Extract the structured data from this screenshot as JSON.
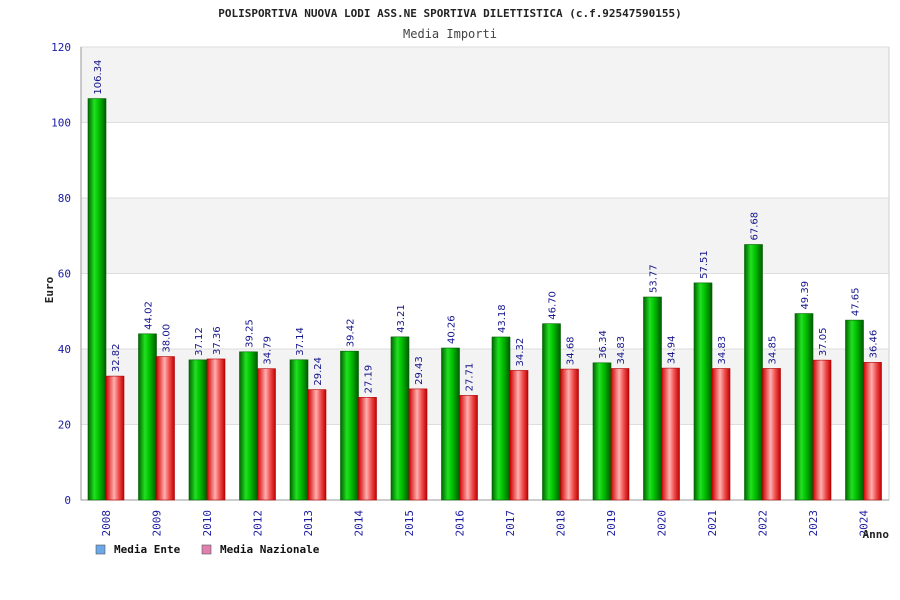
{
  "chart_data": {
    "type": "bar",
    "title": "POLISPORTIVA NUOVA LODI ASS.NE SPORTIVA DILETTISTICA (c.f.92547590155)",
    "subtitle": "Media Importi",
    "xlabel": "Anno",
    "ylabel": "Euro",
    "ylim": [
      0,
      120
    ],
    "yticks": [
      "0",
      "20",
      "40",
      "60",
      "80",
      "100",
      "120"
    ],
    "categories": [
      "2008",
      "2009",
      "2010",
      "2012",
      "2013",
      "2014",
      "2015",
      "2016",
      "2017",
      "2018",
      "2019",
      "2020",
      "2021",
      "2022",
      "2023",
      "2024"
    ],
    "series": [
      {
        "name": "Media Ente",
        "color": "#00b000",
        "values": [
          106.34,
          44.02,
          37.12,
          39.25,
          37.14,
          39.42,
          43.21,
          40.26,
          43.18,
          46.7,
          36.34,
          53.77,
          57.51,
          67.68,
          49.39,
          47.65
        ],
        "labels": [
          "106.34",
          "44.02",
          "37.12",
          "39.25",
          "37.14",
          "39.42",
          "43.21",
          "40.26",
          "43.18",
          "46.70",
          "36.34",
          "53.77",
          "57.51",
          "67.68",
          "49.39",
          "47.65"
        ]
      },
      {
        "name": "Media Nazionale",
        "color": "#e02020",
        "values": [
          32.82,
          38.0,
          37.36,
          34.79,
          29.24,
          27.19,
          29.43,
          27.71,
          34.32,
          34.68,
          34.83,
          34.94,
          34.83,
          34.85,
          37.05,
          36.46
        ],
        "labels": [
          "32.82",
          "38.00",
          "37.36",
          "34.79",
          "29.24",
          "27.19",
          "29.43",
          "27.71",
          "34.32",
          "34.68",
          "34.83",
          "34.94",
          "34.83",
          "34.85",
          "37.05",
          "36.46"
        ]
      }
    ],
    "legend": {
      "position": "bottom-left",
      "items": [
        {
          "label": "Media Ente",
          "swatch": "#6aa8e8"
        },
        {
          "label": "Media Nazionale",
          "swatch": "#e080b0"
        }
      ]
    },
    "grid": true
  }
}
